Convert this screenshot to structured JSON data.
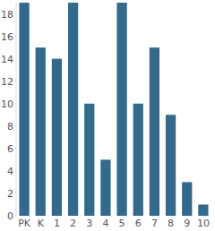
{
  "chart_data": {
    "type": "bar",
    "categories": [
      "PK",
      "K",
      "1",
      "2",
      "3",
      "4",
      "5",
      "6",
      "7",
      "8",
      "9",
      "10"
    ],
    "values": [
      19,
      15,
      14,
      19,
      10,
      5,
      19,
      10,
      15,
      9,
      3,
      1
    ],
    "color": "#336a8c",
    "ylim": [
      0,
      19
    ],
    "yticks": [
      0,
      2,
      4,
      6,
      8,
      10,
      12,
      14,
      16,
      18
    ],
    "grid": false
  }
}
